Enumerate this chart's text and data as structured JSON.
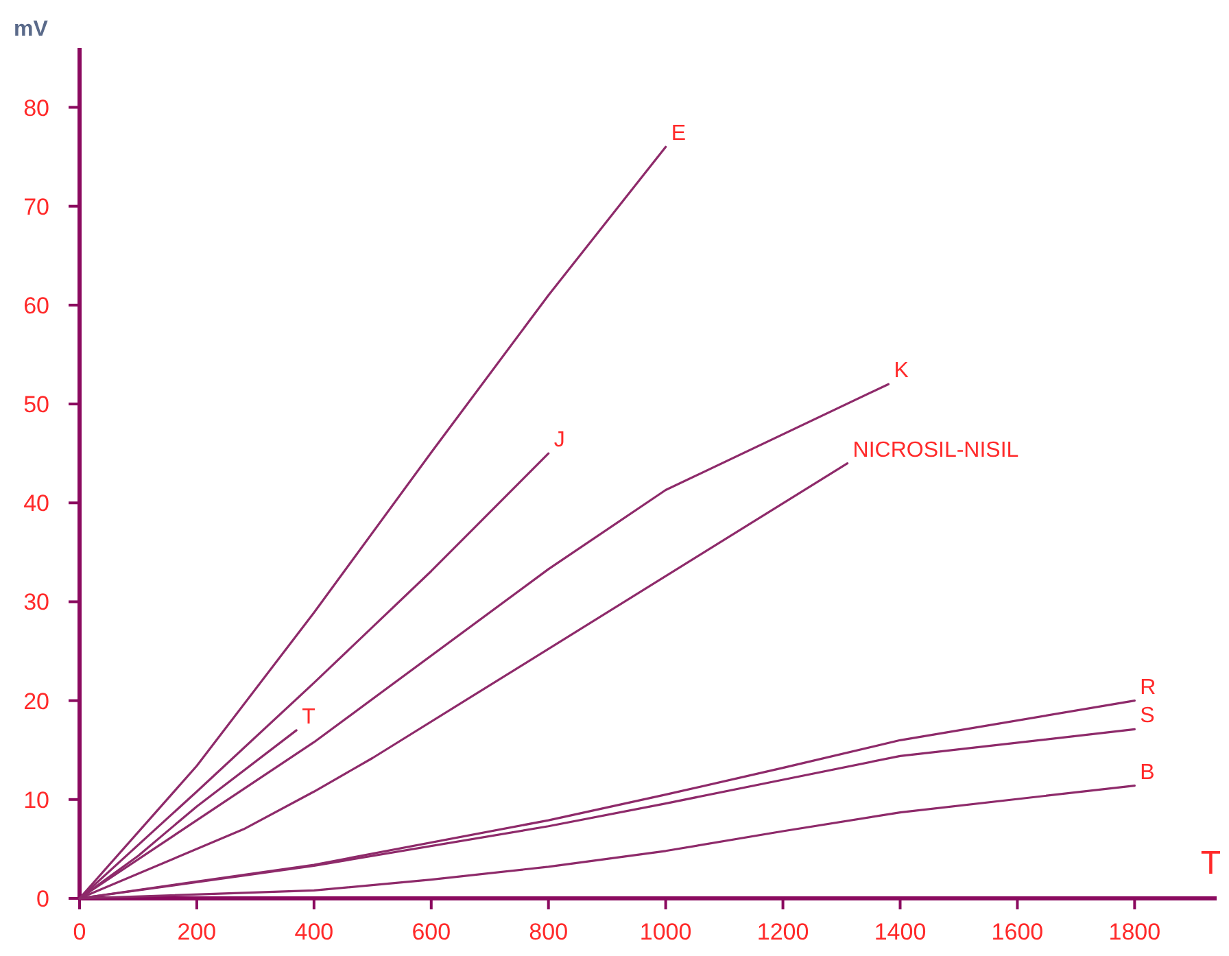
{
  "chart_data": {
    "type": "line",
    "xlabel": "T",
    "ylabel": "mV",
    "xlim": [
      0,
      1940
    ],
    "ylim": [
      0,
      86
    ],
    "xticks": [
      0,
      200,
      400,
      600,
      800,
      1000,
      1200,
      1400,
      1600,
      1800
    ],
    "yticks": [
      0,
      10,
      20,
      30,
      40,
      50,
      60,
      70,
      80
    ],
    "grid": false,
    "marker": "none",
    "line_style": "solid",
    "series": [
      {
        "name": "E",
        "color": "#8e2a6a",
        "x": [
          0,
          200,
          400,
          600,
          800,
          1000
        ],
        "values": [
          0,
          13.4,
          28.9,
          45.1,
          61,
          76
        ]
      },
      {
        "name": "J",
        "color": "#8e2a6a",
        "x": [
          0,
          200,
          400,
          600,
          800
        ],
        "values": [
          0,
          10.8,
          21.8,
          33.1,
          45
        ]
      },
      {
        "name": "T",
        "color": "#8e2a6a",
        "x": [
          0,
          100,
          200,
          370
        ],
        "values": [
          0,
          4.3,
          9.3,
          17
        ]
      },
      {
        "name": "K",
        "color": "#8e2a6a",
        "x": [
          0,
          400,
          800,
          1000,
          1380
        ],
        "values": [
          0,
          15.8,
          33.3,
          41.3,
          52
        ]
      },
      {
        "name": "NICROSIL-NISIL",
        "color": "#8e2a6a",
        "x": [
          0,
          280,
          400,
          500,
          1310
        ],
        "values": [
          0,
          7,
          10.8,
          14.2,
          44
        ]
      },
      {
        "name": "R",
        "color": "#8e2a6a",
        "x": [
          0,
          400,
          800,
          1000,
          1200,
          1400,
          1800
        ],
        "values": [
          0,
          3.4,
          7.9,
          10.5,
          13.2,
          16,
          20
        ]
      },
      {
        "name": "S",
        "color": "#8e2a6a",
        "x": [
          0,
          400,
          800,
          1000,
          1200,
          1400,
          1800
        ],
        "values": [
          0,
          3.3,
          7.3,
          9.6,
          12,
          14.4,
          17.1
        ]
      },
      {
        "name": "B",
        "color": "#8e2a6a",
        "x": [
          0,
          400,
          600,
          800,
          1000,
          1200,
          1400,
          1800
        ],
        "values": [
          0,
          0.8,
          1.9,
          3.2,
          4.8,
          6.8,
          8.7,
          11.4
        ]
      }
    ]
  }
}
